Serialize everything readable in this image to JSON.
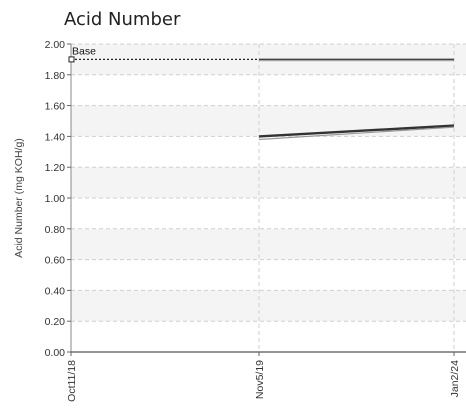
{
  "chart_data": {
    "type": "line",
    "title": "Acid Number",
    "ylabel": "Acid Number (mg KOH/g)",
    "xlabel": "",
    "ylim": [
      0,
      2.0
    ],
    "yticks": [
      "0.00",
      "0.20",
      "0.40",
      "0.60",
      "0.80",
      "1.00",
      "1.20",
      "1.40",
      "1.60",
      "1.80",
      "2.00"
    ],
    "x_categories": [
      "Oct11/18",
      "Nov5/19",
      "Jan2/24"
    ],
    "grid": true,
    "reference_line": {
      "label": "Base",
      "value": 1.9,
      "from": 0,
      "to": 2
    },
    "series": [
      {
        "values": [
          null,
          1.4,
          1.47
        ],
        "color": "#333333"
      },
      {
        "values": [
          null,
          1.38,
          1.46
        ],
        "color": "#999999"
      }
    ]
  }
}
